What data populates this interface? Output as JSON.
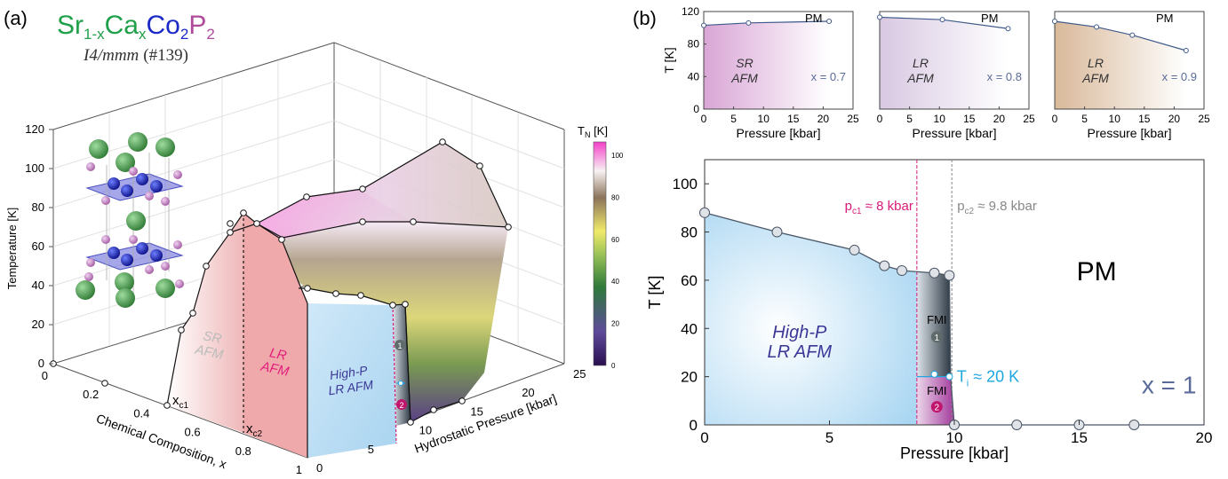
{
  "panel_a": {
    "tag": "(a)",
    "formula": {
      "sr": "Sr",
      "sub1": "1-x",
      "ca": "Ca",
      "sub2": "x",
      "co": "Co",
      "sub3": "2",
      "p": "P",
      "sub4": "2"
    },
    "space_group": "I4/mmm",
    "space_group_num": "(#139)",
    "zlabel": "Temperature [K]",
    "xlabel": "Chemical Composition, x",
    "ylabel": "Hydrostatic Pressure [kbar]",
    "zticks": [
      "0",
      "20",
      "40",
      "60",
      "80",
      "100",
      "120"
    ],
    "xticks": [
      "0",
      "0.2",
      "0.4",
      "0.6",
      "0.8",
      "1"
    ],
    "yticks": [
      "0",
      "5",
      "10",
      "15",
      "20",
      "25"
    ],
    "xc1": {
      "main": "x",
      "sub": "c1"
    },
    "xc2": {
      "main": "x",
      "sub": "c2"
    },
    "regions": {
      "sr": [
        "SR",
        "AFM"
      ],
      "lr": [
        "LR",
        "AFM"
      ],
      "hp": [
        "High-P",
        "LR AFM"
      ]
    },
    "markers": [
      "1",
      "2"
    ],
    "colorbar": {
      "title": "T",
      "sub": "N",
      "unit": " [K]",
      "ticks": [
        "100",
        "80",
        "60",
        "40",
        "20",
        "0"
      ]
    }
  },
  "panel_b": {
    "tag": "(b)",
    "chart_data": [
      {
        "type": "line",
        "region": [
          "SR",
          "AFM"
        ],
        "label": "x = 0.7",
        "phase": "PM",
        "x": [
          0,
          7.5,
          21
        ],
        "y": [
          103,
          106,
          108
        ],
        "xlim": [
          0,
          25
        ],
        "ylim": [
          0,
          120
        ],
        "xlabel": "Pressure [kbar]",
        "ylabel": "T [K]",
        "xticks": [
          0,
          5,
          10,
          15,
          20,
          25
        ],
        "yticks": [
          0,
          40,
          80,
          120
        ],
        "fill": "#d9a6d6"
      },
      {
        "type": "line",
        "region": [
          "LR",
          "AFM"
        ],
        "label": "x = 0.8",
        "phase": "PM",
        "x": [
          0,
          10.5,
          21.5
        ],
        "y": [
          113,
          110,
          99
        ],
        "xlim": [
          0,
          25
        ],
        "ylim": [
          0,
          120
        ],
        "xlabel": "Pressure [kbar]",
        "ylabel": "",
        "xticks": [
          0,
          5,
          10,
          15,
          20,
          25
        ],
        "yticks": [],
        "fill": "#d8c8e2"
      },
      {
        "type": "line",
        "region": [
          "LR",
          "AFM"
        ],
        "label": "x = 0.9",
        "phase": "PM",
        "x": [
          0,
          7,
          13,
          22
        ],
        "y": [
          108,
          101,
          91,
          72
        ],
        "xlim": [
          0,
          25
        ],
        "ylim": [
          0,
          120
        ],
        "xlabel": "Pressure [kbar]",
        "ylabel": "",
        "xticks": [
          0,
          5,
          10,
          15,
          20,
          25
        ],
        "yticks": [],
        "fill": "#d9b99a"
      }
    ],
    "main": {
      "type": "line",
      "xlabel": "Pressure [kbar]",
      "ylabel": "T [K]",
      "xlim": [
        0,
        20
      ],
      "ylim": [
        0,
        110
      ],
      "xticks": [
        0,
        5,
        10,
        15,
        20
      ],
      "yticks": [
        0,
        20,
        40,
        60,
        80,
        100
      ],
      "x": [
        0,
        2.9,
        6.0,
        7.2,
        7.9,
        9.2,
        9.8
      ],
      "y": [
        88,
        80,
        72.5,
        66,
        64,
        63,
        62
      ],
      "zero_x": [
        10,
        12.5,
        15,
        17.2
      ],
      "zero_y": [
        0,
        0,
        0,
        0
      ],
      "pc1": {
        "value": 8.5,
        "label": "p",
        "sub": "c1",
        "text": " ≈ 8 kbar"
      },
      "pc2": {
        "value": 9.9,
        "label": "p",
        "sub": "c2",
        "text": " ≈ 9.8 kbar"
      },
      "ti": {
        "value": 20,
        "label": "T",
        "sub": "i",
        "text": " ≈ 20 K"
      },
      "region": [
        "High-P",
        "LR AFM"
      ],
      "phase": "PM",
      "fmi": "FMI",
      "markers": [
        "1",
        "2"
      ],
      "xvalue": "x = 1"
    }
  }
}
